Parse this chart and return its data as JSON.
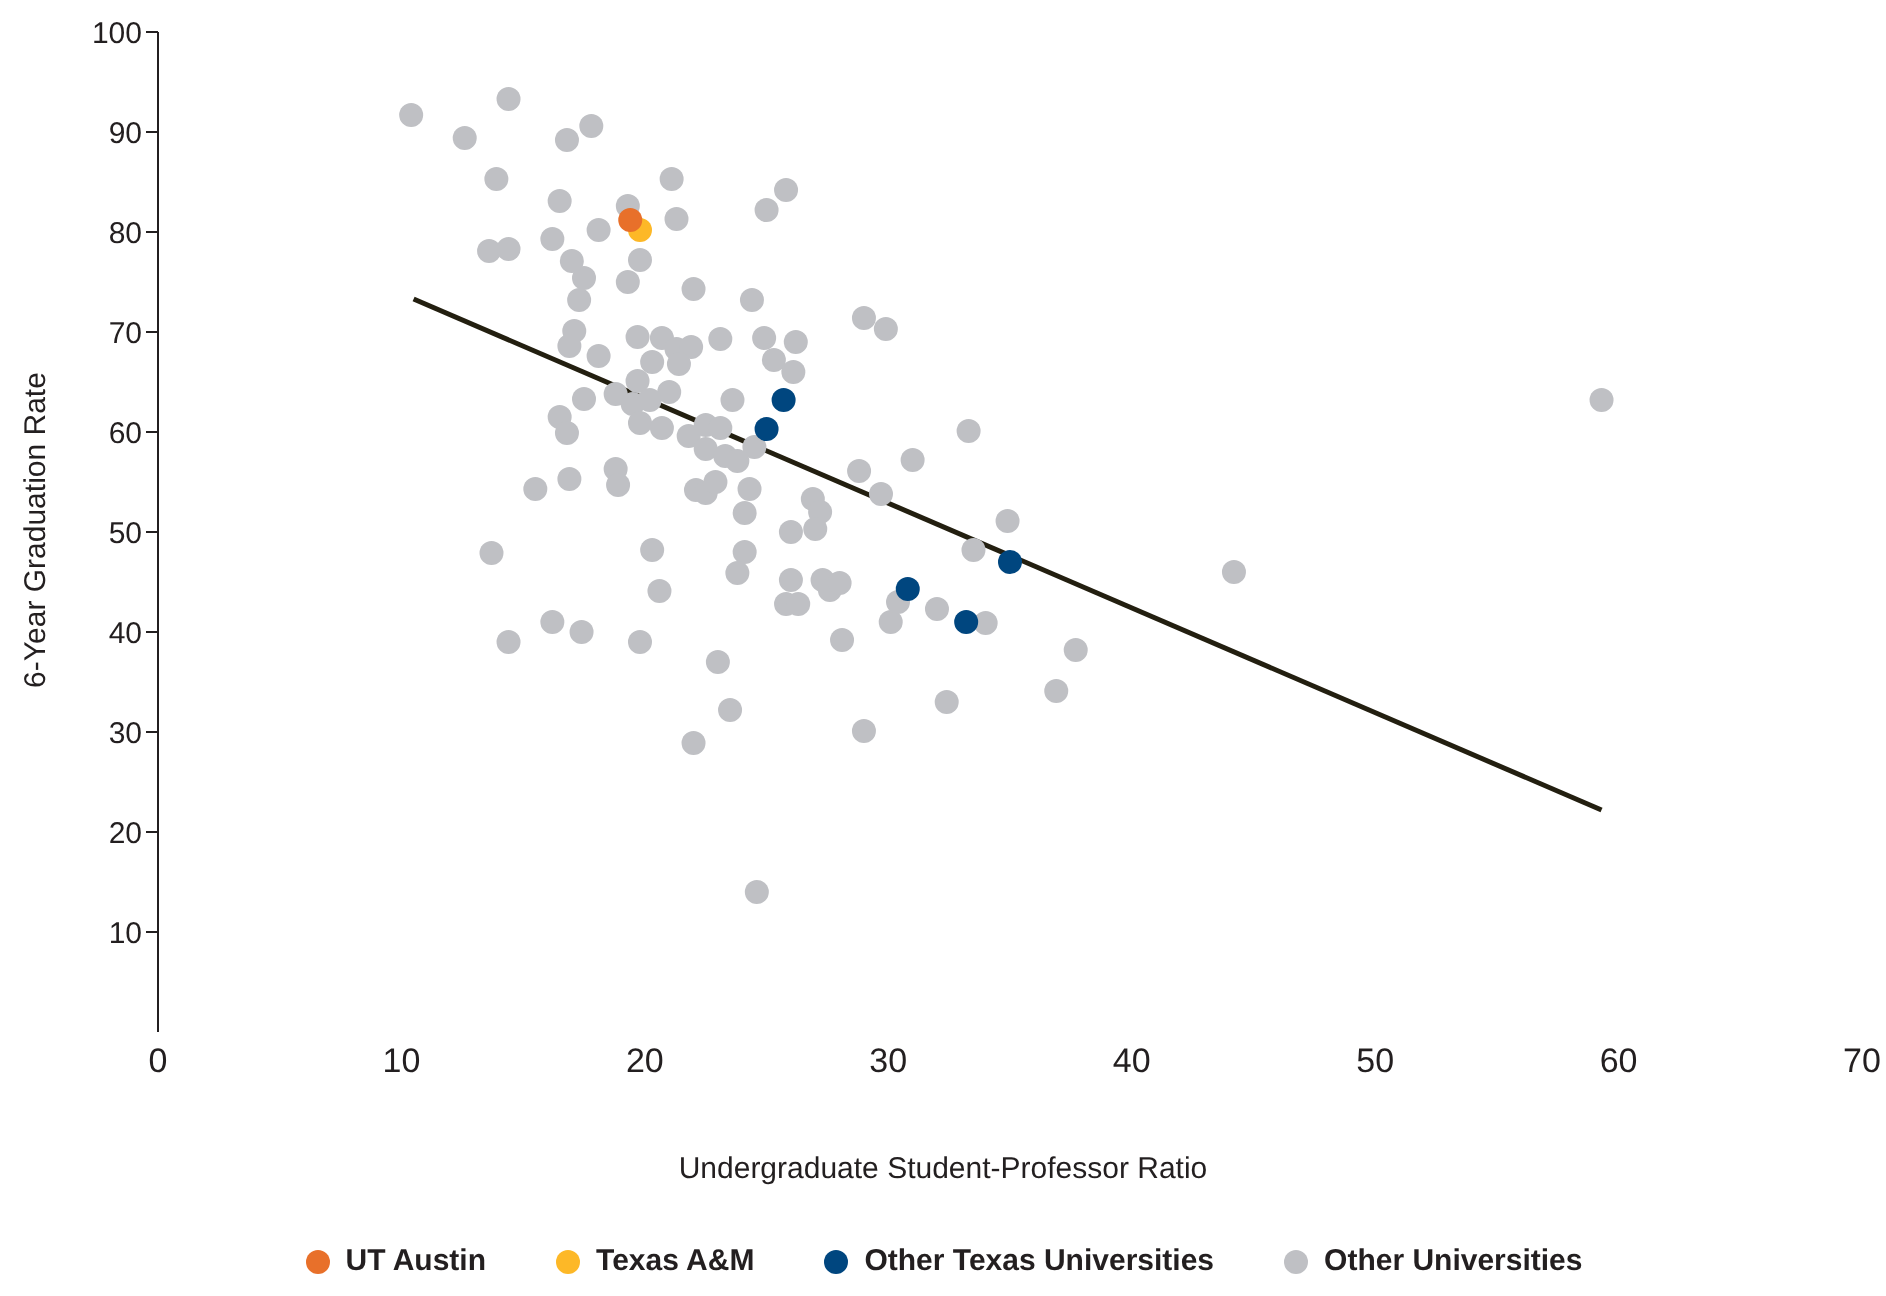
{
  "chart_data": {
    "type": "scatter",
    "xlabel": "Undergraduate Student-Professor Ratio",
    "ylabel": "6-Year Graduation Rate",
    "xlim": [
      0,
      70
    ],
    "xticks": [
      0,
      10,
      20,
      30,
      40,
      50,
      60,
      70
    ],
    "ylim": [
      0,
      100
    ],
    "yticks": [
      10,
      20,
      30,
      40,
      50,
      60,
      70,
      80,
      90,
      100
    ],
    "grid": false,
    "legend": "bottom",
    "marker": "circle",
    "series": [
      {
        "name": "UT Austin",
        "color": "#e8702a",
        "x": [
          19.4
        ],
        "values": [
          81.2
        ]
      },
      {
        "name": "Texas A&M",
        "color": "#fdb827",
        "x": [
          19.8
        ],
        "values": [
          80.2
        ]
      },
      {
        "name": "Other Texas Universities",
        "color": "#00467f",
        "x": [
          25.7,
          25.0,
          30.8,
          33.2,
          35.0
        ],
        "values": [
          63.2,
          60.3,
          44.3,
          41.0,
          47.0
        ]
      },
      {
        "name": "Other Universities",
        "color": "#bfc0c4",
        "x": [
          10.4,
          12.6,
          14.4,
          13.9,
          16.8,
          17.8,
          13.6,
          14.4,
          16.2,
          16.5,
          17.5,
          18.1,
          19.3,
          21.1,
          21.3,
          25.0,
          25.8,
          17.0,
          19.8,
          19.3,
          17.3,
          22.0,
          24.4,
          17.1,
          16.9,
          18.1,
          19.7,
          20.7,
          21.3,
          21.9,
          23.1,
          24.9,
          26.2,
          25.3,
          26.1,
          29.0,
          29.9,
          20.3,
          21.4,
          19.7,
          21.0,
          17.5,
          18.8,
          19.5,
          20.2,
          16.5,
          16.8,
          19.8,
          20.7,
          21.8,
          22.5,
          23.1,
          23.6,
          22.5,
          23.3,
          24.5,
          23.8,
          15.5,
          16.9,
          18.8,
          18.9,
          22.1,
          22.5,
          22.9,
          24.3,
          24.1,
          26.0,
          26.9,
          27.2,
          27.0,
          28.8,
          29.7,
          31.0,
          33.3,
          33.5,
          34.9,
          13.7,
          20.3,
          24.1,
          20.6,
          23.8,
          25.8,
          26.0,
          26.3,
          27.3,
          27.6,
          28.0,
          30.1,
          30.4,
          32.0,
          34.0,
          28.1,
          16.2,
          14.4,
          17.4,
          19.8,
          23.0,
          23.5,
          22.0,
          29.0,
          32.4,
          36.9,
          37.7,
          24.6,
          44.2,
          59.3
        ],
        "values": [
          91.7,
          89.4,
          93.3,
          85.3,
          89.2,
          90.6,
          78.1,
          78.3,
          79.3,
          83.1,
          75.4,
          80.2,
          82.6,
          85.3,
          81.3,
          82.2,
          84.2,
          77.1,
          77.2,
          75.0,
          73.2,
          74.3,
          73.2,
          70.1,
          68.6,
          67.6,
          69.5,
          69.4,
          68.3,
          68.5,
          69.3,
          69.4,
          69.0,
          67.2,
          66.0,
          71.4,
          70.3,
          67.0,
          66.8,
          65.1,
          64.0,
          63.3,
          63.8,
          62.8,
          63.2,
          61.5,
          59.9,
          60.9,
          60.4,
          59.6,
          60.7,
          60.4,
          63.2,
          58.3,
          57.6,
          58.5,
          57.1,
          54.3,
          55.3,
          56.3,
          54.7,
          54.2,
          53.9,
          55.0,
          54.3,
          51.9,
          50.0,
          53.3,
          52.0,
          50.3,
          56.1,
          53.8,
          57.2,
          60.1,
          48.2,
          51.1,
          47.9,
          48.2,
          48.0,
          44.1,
          45.9,
          42.8,
          45.2,
          42.8,
          45.2,
          44.2,
          44.9,
          41.0,
          43.0,
          42.3,
          40.9,
          39.2,
          41.0,
          39.0,
          40.0,
          39.0,
          37.0,
          32.2,
          28.9,
          30.1,
          33.0,
          34.1,
          38.2,
          14.0,
          46.0,
          63.2
        ]
      },
      {
        "type": "line",
        "marker": "none",
        "color": "#231f10",
        "x": [
          10.5,
          59.3
        ],
        "values": [
          73.3,
          22.2
        ]
      }
    ]
  }
}
